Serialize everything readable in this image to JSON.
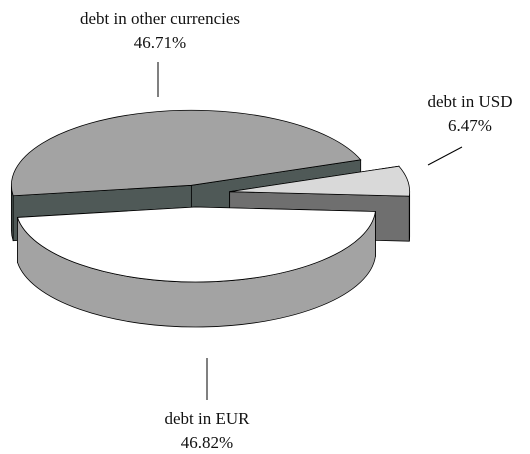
{
  "chart_data": {
    "type": "pie3d",
    "categories": [
      "debt in other currencies",
      "debt in USD",
      "debt in EUR"
    ],
    "values": [
      46.71,
      6.47,
      46.82
    ],
    "value_labels": [
      "46.71%",
      "6.47%",
      "46.82%"
    ],
    "colors": [
      "#a3a3a3",
      "#d9d9d9",
      "#ffffff"
    ]
  }
}
